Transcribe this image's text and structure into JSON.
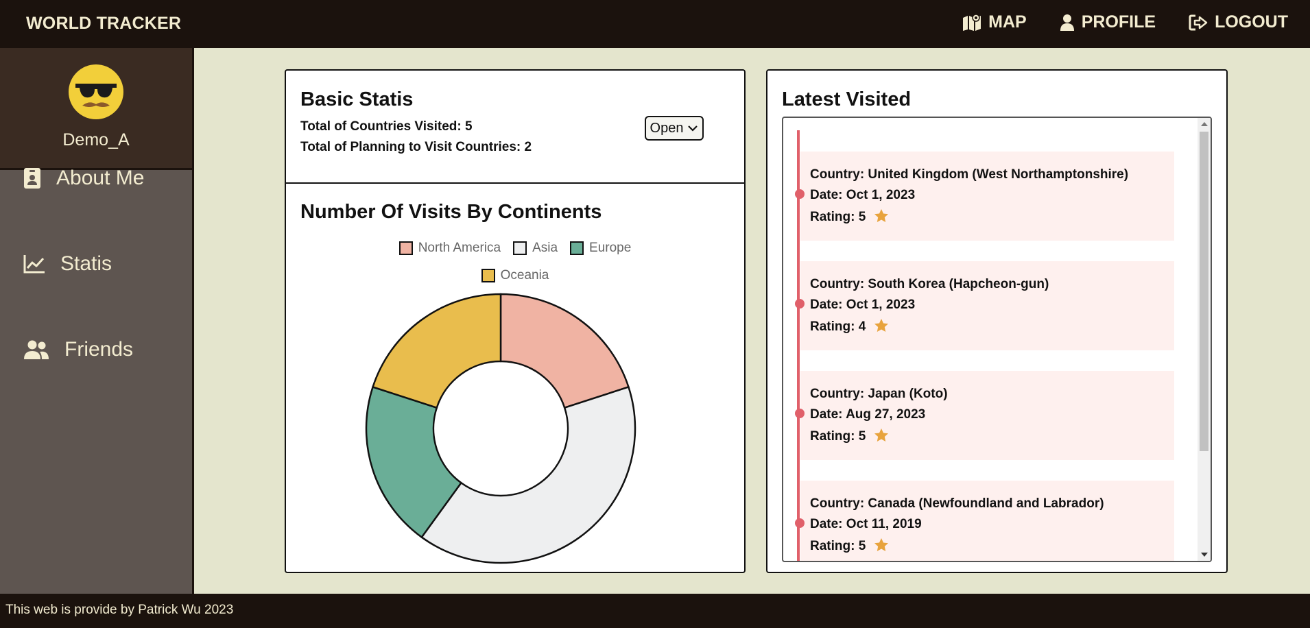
{
  "header": {
    "brand": "WORLD TRACKER",
    "nav": [
      {
        "label": "MAP",
        "icon": "map-icon"
      },
      {
        "label": "PROFILE",
        "icon": "user-icon"
      },
      {
        "label": "LOGOUT",
        "icon": "logout-icon"
      }
    ]
  },
  "sidebar": {
    "username": "Demo_A",
    "avatar_icon": "sunglasses-mustache-emoji-icon",
    "items": [
      {
        "label": "About Me",
        "icon": "id-badge-icon"
      },
      {
        "label": "Statis",
        "icon": "line-chart-icon"
      },
      {
        "label": "Friends",
        "icon": "users-icon"
      }
    ]
  },
  "stats": {
    "title": "Basic Statis",
    "visited_line": "Total of Countries Visited: 5",
    "planning_line": "Total of Planning to Visit Countries: 2",
    "select_value": "Open"
  },
  "chart": {
    "title": "Number Of Visits By Continents"
  },
  "chart_data": {
    "type": "pie",
    "variant": "doughnut",
    "title": "Number Of Visits By Continents",
    "legend_placement": "top",
    "categories": [
      "North America",
      "Asia",
      "Europe",
      "Oceania"
    ],
    "values": [
      1,
      2,
      1,
      1
    ],
    "colors": [
      "#f0b3a3",
      "#eeeff0",
      "#6aae97",
      "#e9bd4d"
    ]
  },
  "latest": {
    "title": "Latest Visited",
    "items": [
      {
        "country": "Country: United Kingdom (West Northamptonshire)",
        "date": "Date: Oct 1, 2023",
        "rating": "Rating: 5"
      },
      {
        "country": "Country: South Korea (Hapcheon-gun)",
        "date": "Date: Oct 1, 2023",
        "rating": "Rating: 4"
      },
      {
        "country": "Country: Japan (Koto)",
        "date": "Date: Aug 27, 2023",
        "rating": "Rating: 5"
      },
      {
        "country": "Country: Canada (Newfoundland and Labrador)",
        "date": "Date: Oct 11, 2019",
        "rating": "Rating: 5"
      }
    ]
  },
  "footer": {
    "text": "This web is provide by Patrick Wu 2023"
  },
  "colors": {
    "topbar": "#1b120d",
    "sidebar": "#5e5550",
    "user_box": "#3a2b22",
    "page_bg": "#e4e5cd",
    "timeline_accent": "#e0606a",
    "timeline_item_bg": "#fef0ee",
    "star": "#e8a33d"
  }
}
